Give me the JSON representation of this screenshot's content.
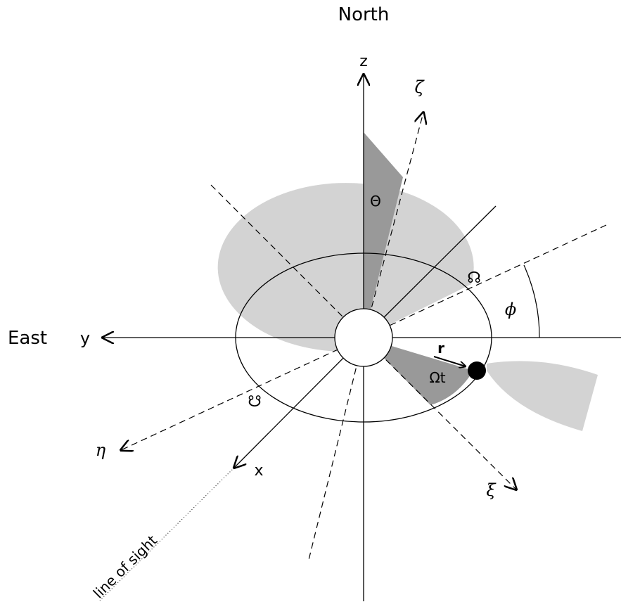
{
  "labels": {
    "north": "North",
    "east": "East",
    "z": "z",
    "y": "y",
    "x": "x",
    "zeta": "ζ",
    "eta": "η",
    "xi": "ξ",
    "theta": "Θ",
    "phi": "ϕ",
    "r": "r",
    "omega_t": "Ωt",
    "ascending_node": "☊",
    "descending_node": "☋",
    "line_of_sight": "line of sight"
  },
  "colors": {
    "line": "#000000",
    "dark_shade": "#999999",
    "light_shade": "#d3d3d3",
    "background": "#ffffff"
  }
}
